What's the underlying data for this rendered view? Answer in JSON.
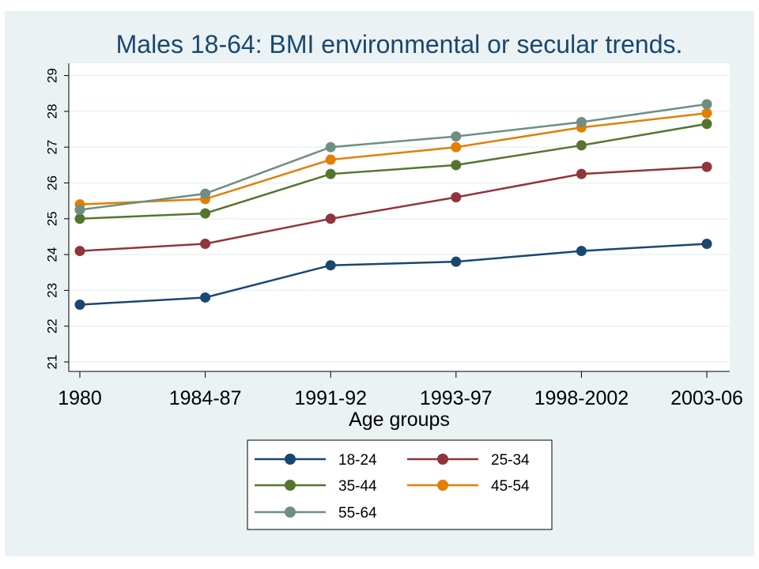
{
  "chart_data": {
    "type": "line",
    "title": "Males 18-64: BMI environmental or secular trends.",
    "xlabel": "Age groups",
    "ylabel": "",
    "categories": [
      "1980",
      "1984-87",
      "1991-92",
      "1993-97",
      "1998-2002",
      "2003-06"
    ],
    "ylim": [
      21,
      29
    ],
    "yticks": [
      21,
      22,
      23,
      24,
      25,
      26,
      27,
      28,
      29
    ],
    "grid": true,
    "legend_position": "bottom",
    "series": [
      {
        "name": "18-24",
        "color": "#1a476f",
        "values": [
          22.6,
          22.8,
          23.7,
          23.8,
          24.1,
          24.3
        ]
      },
      {
        "name": "25-34",
        "color": "#90353b",
        "values": [
          24.1,
          24.3,
          25.0,
          25.6,
          26.25,
          26.45
        ]
      },
      {
        "name": "35-44",
        "color": "#55752f",
        "values": [
          25.0,
          25.15,
          26.25,
          26.5,
          27.05,
          27.65
        ]
      },
      {
        "name": "45-54",
        "color": "#e37e00",
        "values": [
          25.4,
          25.55,
          26.65,
          27.0,
          27.55,
          27.95
        ]
      },
      {
        "name": "55-64",
        "color": "#6e8e84",
        "values": [
          25.25,
          25.7,
          27.0,
          27.3,
          27.7,
          28.2
        ]
      }
    ]
  }
}
